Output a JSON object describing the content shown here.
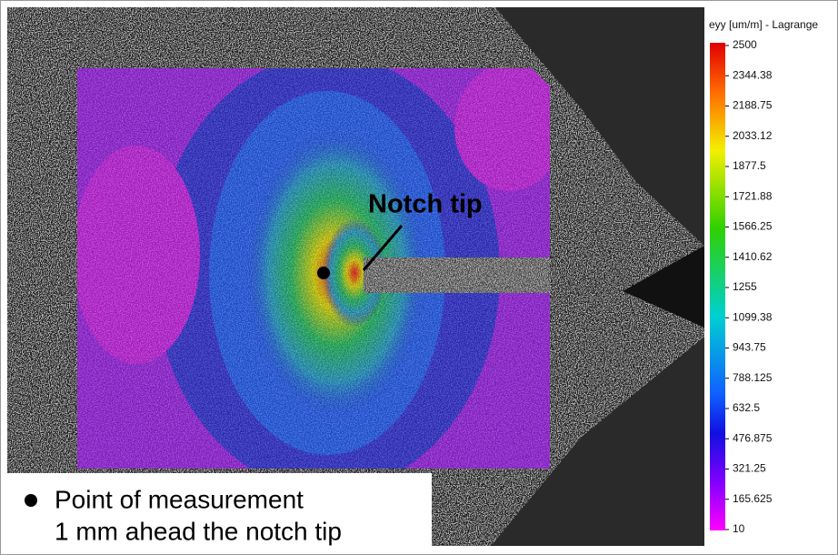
{
  "colorbar": {
    "title": "eyy [um/m] - Lagrange",
    "ticks": [
      "2500",
      "2344.38",
      "2188.75",
      "2033.12",
      "1877.5",
      "1721.88",
      "1566.25",
      "1410.62",
      "1255",
      "1099.38",
      "943.75",
      "788.125",
      "632.5",
      "476.875",
      "321.25",
      "165.625",
      "10"
    ]
  },
  "annotation": "Notch tip",
  "legend": {
    "lines": [
      "Point of measurement",
      "1 mm ahead the notch tip"
    ]
  }
}
